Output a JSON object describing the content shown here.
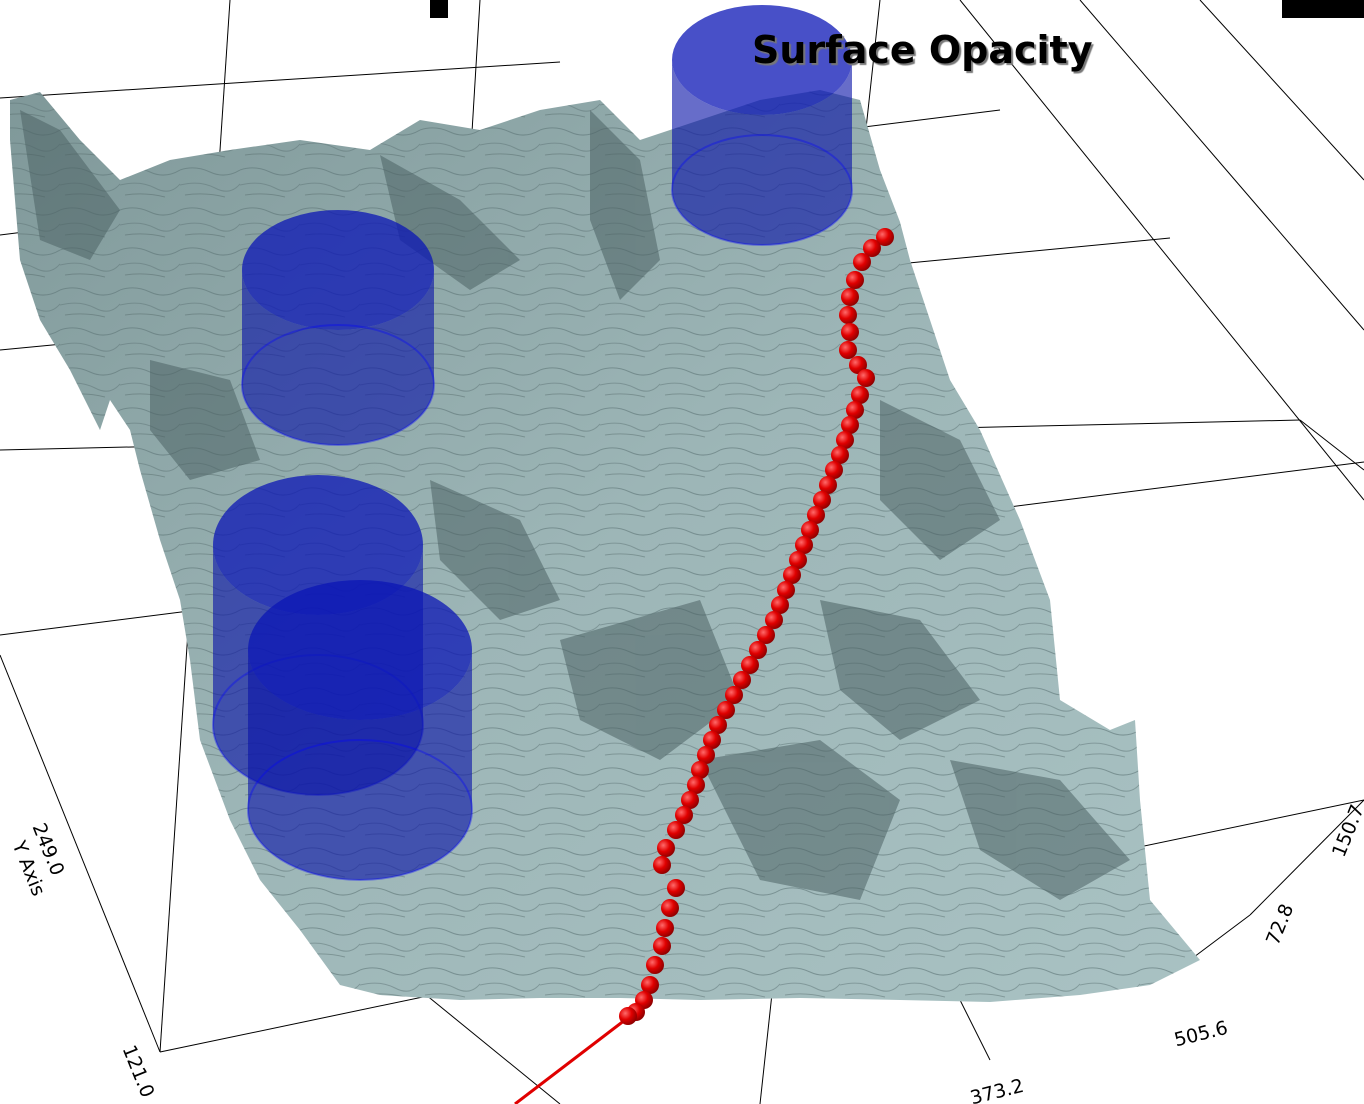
{
  "title": "Surface Opacity",
  "axes": {
    "y_axis": {
      "label": "Y Axis",
      "ticks": [
        "249.0",
        "121.0"
      ]
    },
    "x_axis": {
      "ticks": [
        "373.2",
        "505.6"
      ]
    },
    "z_axis": {
      "ticks": [
        "72.8",
        "150.7"
      ]
    }
  },
  "colors": {
    "background": "#ffffff",
    "surface": "#8fa9aa",
    "surface_shade": "#4f6466",
    "cylinders": "#0a14a8",
    "well_path": "#e00000",
    "grid": "#000000"
  },
  "scene": {
    "cylinder_count": 4,
    "surface_opacity": "semi-transparent",
    "well_markers": "spheres"
  }
}
